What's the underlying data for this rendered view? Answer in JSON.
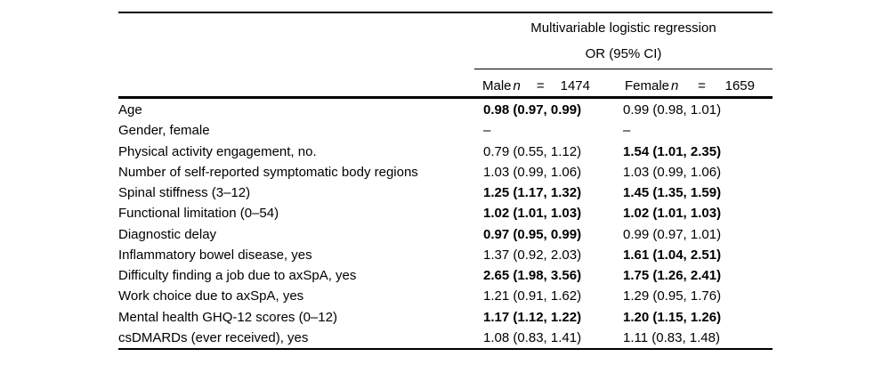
{
  "page": {
    "background_color": "#ffffff",
    "text_color": "#000000",
    "rule_color": "#000000"
  },
  "table": {
    "group_header": "Multivariable logistic regression",
    "subheader": "OR (95% CI)",
    "columns": [
      {
        "name": "Male",
        "n_symbol": "n",
        "equals": "=",
        "count": "1474"
      },
      {
        "name": "Female",
        "n_symbol": "n",
        "equals": "=",
        "count": "1659"
      }
    ],
    "rows": [
      {
        "label": "Age",
        "male": "0.98 (0.97, 0.99)",
        "male_bold": true,
        "female": "0.99 (0.98, 1.01)",
        "female_bold": false
      },
      {
        "label": "Gender, female",
        "male": "–",
        "male_bold": false,
        "female": "–",
        "female_bold": false
      },
      {
        "label": "Physical activity engagement, no.",
        "male": "0.79 (0.55, 1.12)",
        "male_bold": false,
        "female": "1.54 (1.01, 2.35)",
        "female_bold": true
      },
      {
        "label": "Number of self-reported symptomatic body regions",
        "male": "1.03 (0.99, 1.06)",
        "male_bold": false,
        "female": "1.03 (0.99, 1.06)",
        "female_bold": false
      },
      {
        "label": "Spinal stiffness (3–12)",
        "male": "1.25 (1.17, 1.32)",
        "male_bold": true,
        "female": "1.45 (1.35, 1.59)",
        "female_bold": true
      },
      {
        "label": "Functional limitation (0–54)",
        "male": "1.02 (1.01, 1.03)",
        "male_bold": true,
        "female": "1.02 (1.01, 1.03)",
        "female_bold": true
      },
      {
        "label": "Diagnostic delay",
        "male": "0.97 (0.95, 0.99)",
        "male_bold": true,
        "female": "0.99 (0.97, 1.01)",
        "female_bold": false
      },
      {
        "label": "Inflammatory bowel disease, yes",
        "male": "1.37 (0.92, 2.03)",
        "male_bold": false,
        "female": "1.61 (1.04, 2.51)",
        "female_bold": true
      },
      {
        "label": "Difficulty finding a job due to axSpA, yes",
        "male": "2.65 (1.98, 3.56)",
        "male_bold": true,
        "female": "1.75 (1.26, 2.41)",
        "female_bold": true
      },
      {
        "label": "Work choice due to axSpA, yes",
        "male": "1.21 (0.91, 1.62)",
        "male_bold": false,
        "female": "1.29 (0.95, 1.76)",
        "female_bold": false
      },
      {
        "label": "Mental health GHQ-12 scores (0–12)",
        "male": "1.17 (1.12, 1.22)",
        "male_bold": true,
        "female": "1.20 (1.15, 1.26)",
        "female_bold": true
      },
      {
        "label": "csDMARDs (ever received), yes",
        "male": "1.08 (0.83, 1.41)",
        "male_bold": false,
        "female": "1.11 (0.83, 1.48)",
        "female_bold": false
      }
    ]
  }
}
